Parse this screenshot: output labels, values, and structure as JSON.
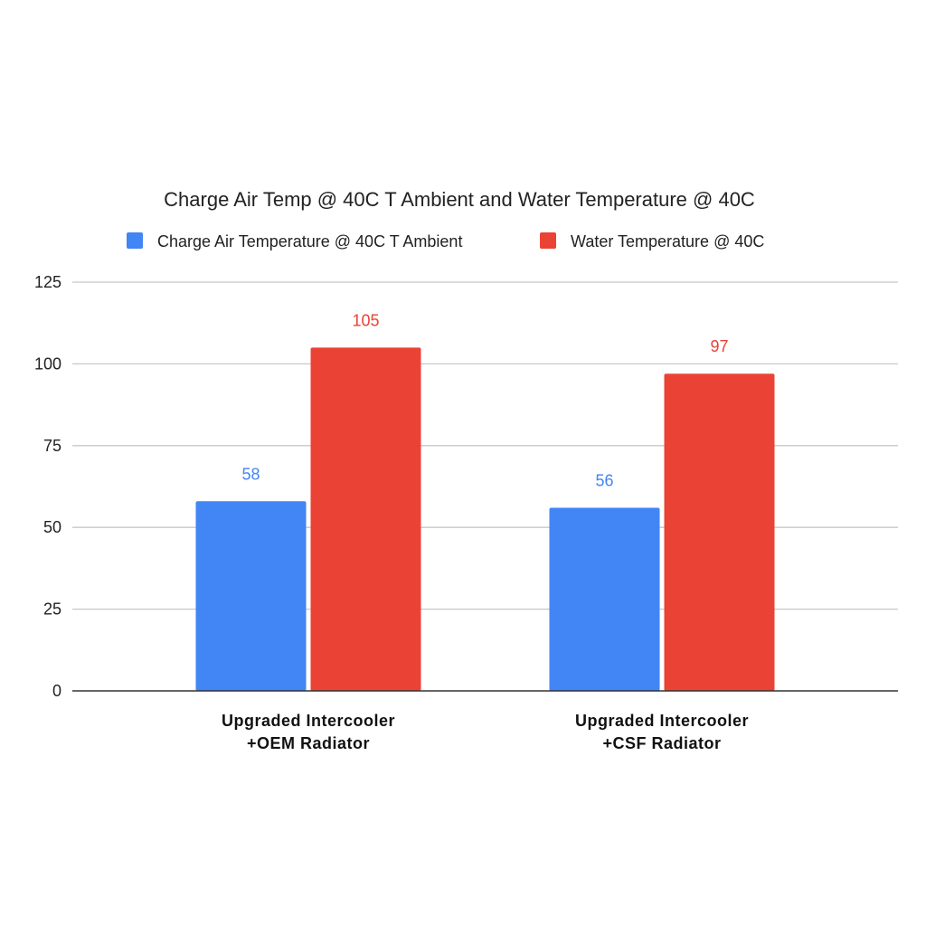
{
  "chart_data": {
    "type": "bar",
    "title": "Charge Air Temp @ 40C T Ambient and Water Temperature @ 40C",
    "categories": [
      [
        "Upgraded Intercooler",
        "+OEM Radiator"
      ],
      [
        "Upgraded Intercooler",
        "+CSF Radiator"
      ]
    ],
    "series": [
      {
        "name": "Charge Air Temperature @ 40C T Ambient",
        "values": [
          58,
          56
        ],
        "color": "#4285F4"
      },
      {
        "name": "Water Temperature @ 40C",
        "values": [
          105,
          97
        ],
        "color": "#EA4335"
      }
    ],
    "ylim": [
      0,
      125
    ],
    "yticks": [
      0,
      25,
      50,
      75,
      100,
      125
    ],
    "grid": true,
    "legend_position": "top",
    "data_labels": true
  }
}
